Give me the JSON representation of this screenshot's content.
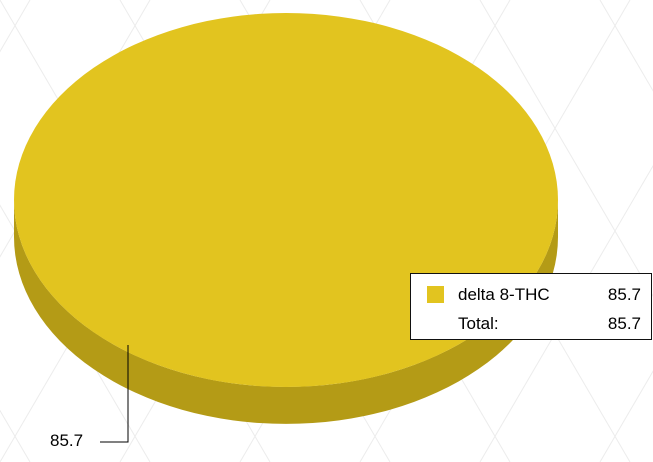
{
  "chart_data": {
    "type": "pie",
    "categories": [
      "delta 8-THC"
    ],
    "values": [
      85.7
    ],
    "title": "",
    "legend": {
      "position": "right",
      "entries": [
        {
          "label": "delta 8-THC",
          "value": "85.7"
        }
      ],
      "total_label": "Total:",
      "total_value": "85.7"
    },
    "data_labels": [
      "85.7"
    ],
    "colors": {
      "slice_top": "#e2c41f",
      "slice_side": "#b49b16"
    }
  }
}
